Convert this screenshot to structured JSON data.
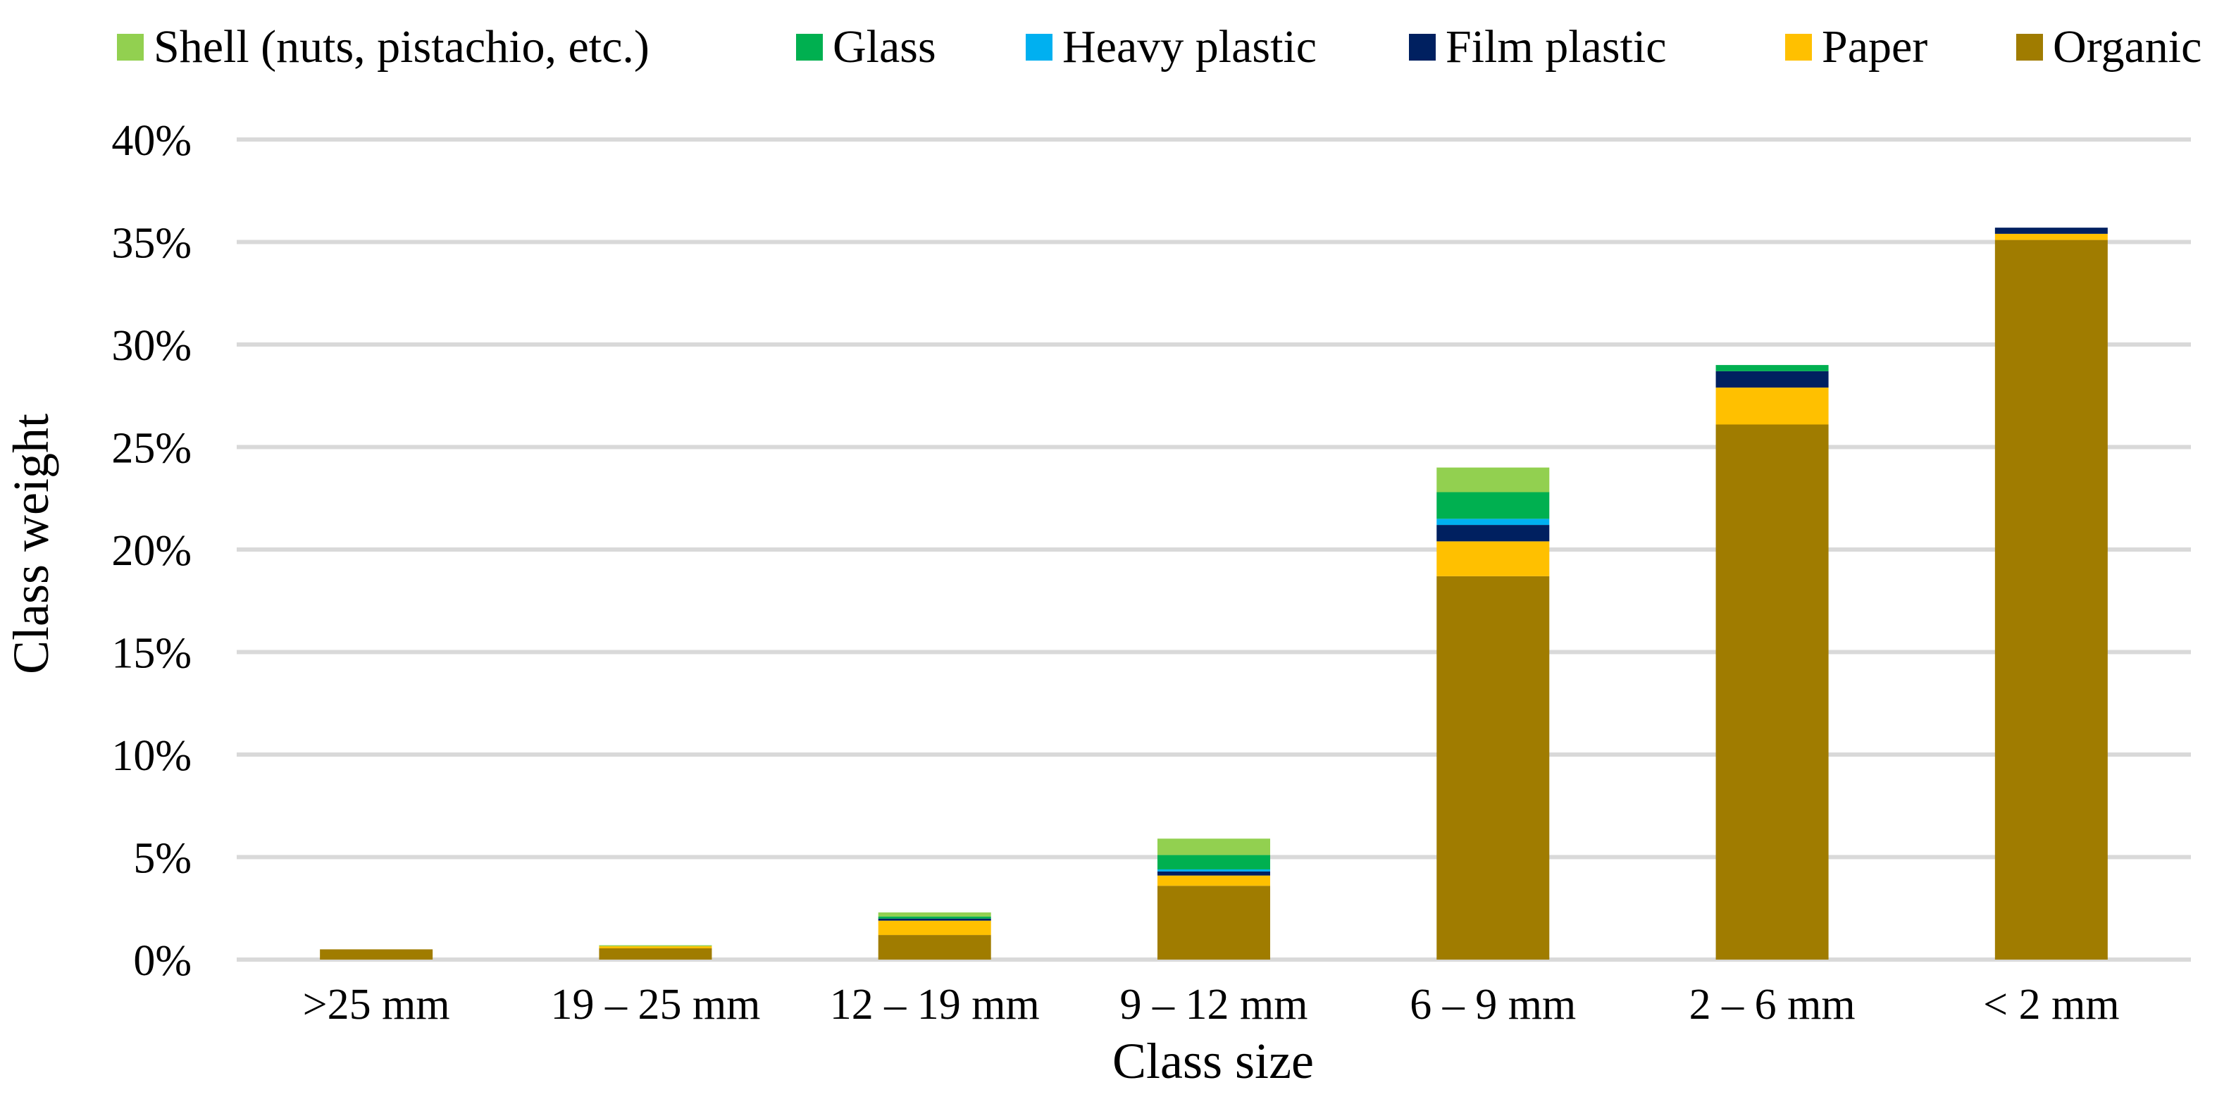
{
  "chart_data": {
    "type": "bar",
    "stacked": true,
    "title": "",
    "xlabel": "Class size",
    "ylabel": "Class weight",
    "ylim": [
      0,
      40
    ],
    "y_ticks": [
      0,
      5,
      10,
      15,
      20,
      25,
      30,
      35,
      40
    ],
    "y_tick_labels": [
      "0%",
      "5%",
      "10%",
      "15%",
      "20%",
      "25%",
      "30%",
      "35%",
      "40%"
    ],
    "grid": true,
    "legend_position": "top",
    "categories": [
      ">25 mm",
      "19 – 25 mm",
      "12 – 19 mm",
      "9 – 12 mm",
      "6 – 9 mm",
      "2 – 6 mm",
      "< 2 mm"
    ],
    "series": [
      {
        "name": "Organic",
        "color": "#a07c00",
        "values": [
          0.5,
          0.55,
          1.2,
          3.6,
          18.7,
          26.1,
          35.1
        ]
      },
      {
        "name": "Paper",
        "color": "#ffc000",
        "values": [
          0.0,
          0.1,
          0.7,
          0.5,
          1.7,
          1.8,
          0.3
        ]
      },
      {
        "name": "Film plastic",
        "color": "#002060",
        "values": [
          0.0,
          0.0,
          0.1,
          0.2,
          0.8,
          0.8,
          0.3
        ]
      },
      {
        "name": "Heavy plastic",
        "color": "#00b0f0",
        "values": [
          0.0,
          0.0,
          0.0,
          0.1,
          0.3,
          0.0,
          0.0
        ]
      },
      {
        "name": "Glass",
        "color": "#00b050",
        "values": [
          0.0,
          0.0,
          0.1,
          0.7,
          1.3,
          0.3,
          0.0
        ]
      },
      {
        "name": "Shell (nuts, pistachio, etc.)",
        "color": "#92d050",
        "values": [
          0.0,
          0.05,
          0.2,
          0.8,
          1.2,
          0.0,
          0.0
        ]
      }
    ],
    "legend_order": [
      "Shell (nuts, pistachio, etc.)",
      "Glass",
      "Heavy plastic",
      "Film plastic",
      "Paper",
      "Organic"
    ]
  }
}
